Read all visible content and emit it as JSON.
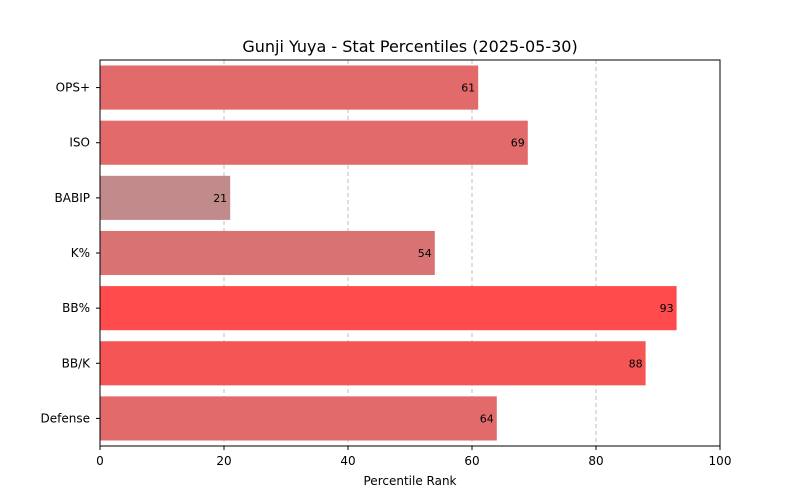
{
  "chart_data": {
    "type": "bar",
    "orientation": "horizontal",
    "title": "Gunji Yuya - Stat Percentiles (2025-05-30)",
    "xlabel": "Percentile Rank",
    "ylabel": "",
    "xlim": [
      0,
      100
    ],
    "xticks": [
      0,
      20,
      40,
      60,
      80,
      100
    ],
    "grid": "x-dashed",
    "categories": [
      "OPS+",
      "ISO",
      "BABIP",
      "K%",
      "BB%",
      "BB/K",
      "Defense"
    ],
    "values": [
      61,
      69,
      21,
      54,
      93,
      88,
      64
    ],
    "colors": [
      "#e26a6a",
      "#e26a6a",
      "#c18b8b",
      "#d97373",
      "#ff4b4b",
      "#f55555",
      "#e26a6a"
    ]
  }
}
